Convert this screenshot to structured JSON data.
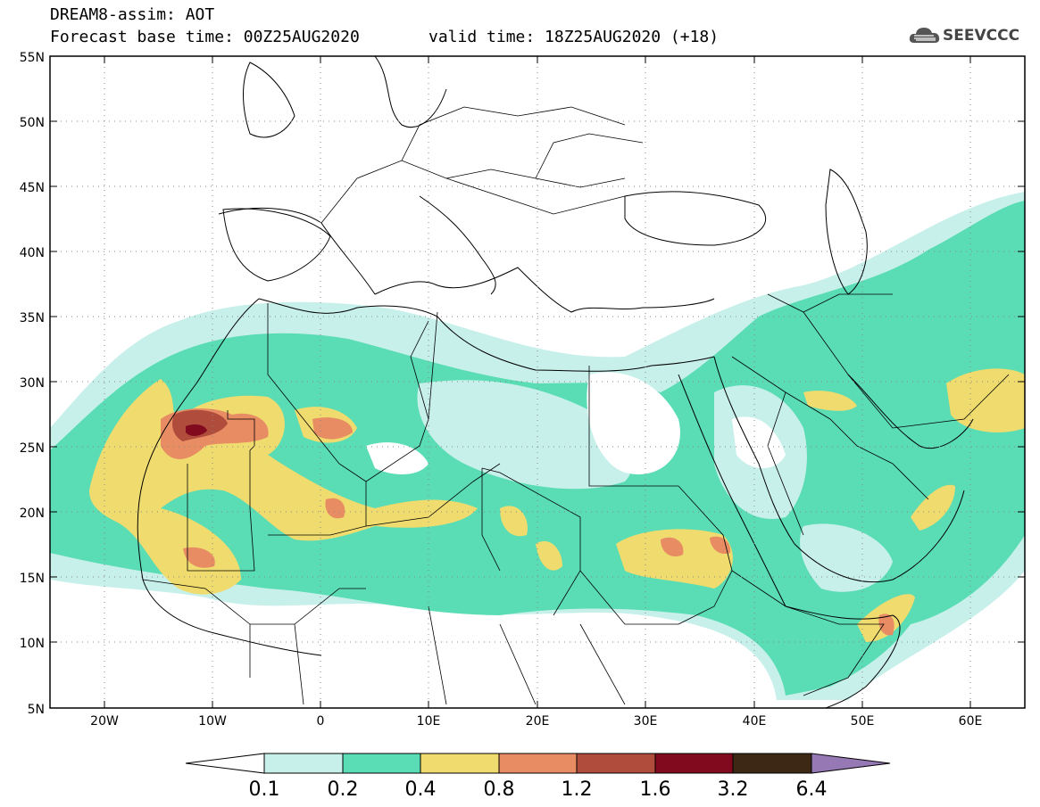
{
  "header": {
    "line1": "DREAM8-assim: AOT",
    "line2": "Forecast base time: 00Z25AUG2020",
    "valid": "valid time: 18Z25AUG2020 (+18)"
  },
  "logo": {
    "text": "SEEVCCC",
    "icon": "cloud-icon"
  },
  "map": {
    "lon_range": [
      -25,
      65
    ],
    "lat_range": [
      5,
      55
    ],
    "lat_ticks": [
      "55N",
      "50N",
      "45N",
      "40N",
      "35N",
      "30N",
      "25N",
      "20N",
      "15N",
      "10N",
      "5N"
    ],
    "lon_ticks": [
      "20W",
      "10W",
      "0",
      "10E",
      "20E",
      "30E",
      "40E",
      "50E",
      "60E"
    ],
    "grid": "dotted",
    "field": "aerosol optical thickness"
  },
  "colorbar": {
    "levels": [
      "0.1",
      "0.2",
      "0.4",
      "0.8",
      "1.2",
      "1.6",
      "3.2",
      "6.4"
    ],
    "colors": [
      "#c8f0eb",
      "#5adcb4",
      "#f0dc6e",
      "#e88c64",
      "#b04c3c",
      "#820a1e",
      "#3c2814",
      "#9678b4"
    ],
    "under_color": "#ffffff"
  }
}
